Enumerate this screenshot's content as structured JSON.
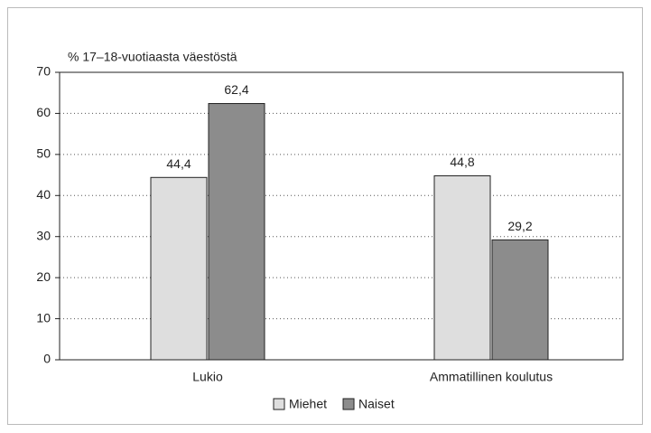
{
  "chart_data": {
    "type": "bar",
    "ylabel": "% 17–18-vuotiaasta väestöstä",
    "categories": [
      "Lukio",
      "Ammatillinen koulutus"
    ],
    "series": [
      {
        "name": "Miehet",
        "color": "#dedede",
        "values": [
          44.4,
          44.8
        ],
        "value_labels": [
          "44,4",
          "44,8"
        ]
      },
      {
        "name": "Naiset",
        "color": "#8c8c8c",
        "values": [
          62.4,
          29.2
        ],
        "value_labels": [
          "62,4",
          "29,2"
        ]
      }
    ],
    "ylim": [
      0,
      70
    ],
    "yticks": [
      0,
      10,
      20,
      30,
      40,
      50,
      60,
      70
    ],
    "grid": true,
    "legend": "bottom"
  }
}
